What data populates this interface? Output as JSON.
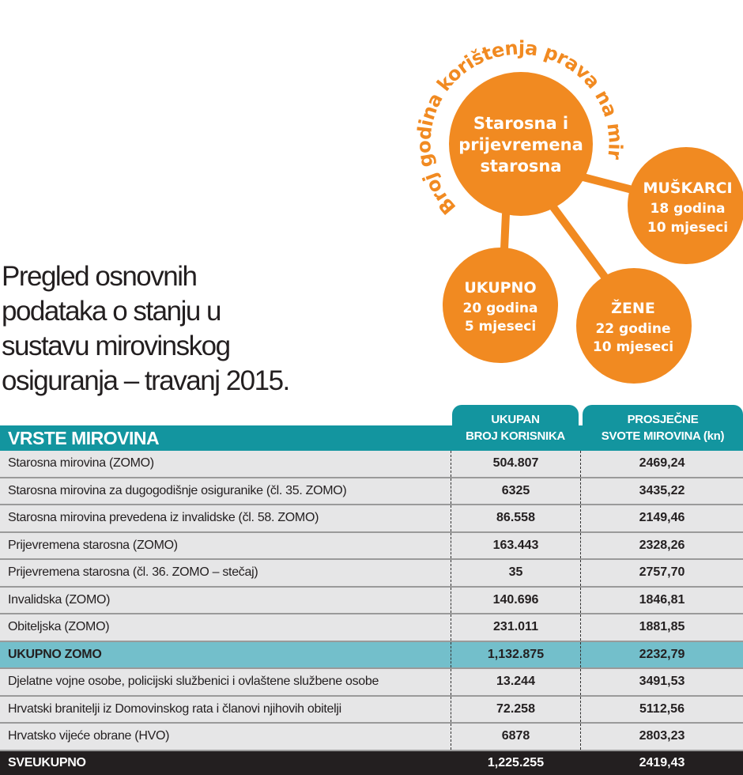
{
  "diagram": {
    "arc_label": "Broj godina korištenja prava na mirovinu",
    "center": [
      "Starosna i",
      "prijevremena",
      "starosna"
    ],
    "men": {
      "label": "MUŠKARCI",
      "years": "18 godina",
      "months": "10 mjeseci"
    },
    "total": {
      "label": "UKUPNO",
      "years": "20 godina",
      "months": "5 mjeseci"
    },
    "women": {
      "label": "ŽENE",
      "years": "22 godine",
      "months": "10 mjeseci"
    },
    "accent_color": "#f18a21"
  },
  "title": [
    "Pregled osnovnih",
    "podataka o stanju u",
    "sustavu mirovinskog",
    "osiguranja – travanj 2015."
  ],
  "table": {
    "header_color": "#13959f",
    "columns": [
      "VRSTE MIROVINA",
      "UKUPAN BROJ KORISNIKA",
      "PROSJEČNE SVOTE MIROVINA (kn)"
    ],
    "col2_lines": [
      "UKUPAN",
      "BROJ KORISNIKA"
    ],
    "col3_lines": [
      "PROSJEČNE",
      "SVOTE MIROVINA (kn)"
    ],
    "rows": [
      {
        "name": "Starosna mirovina (ZOMO)",
        "users": "504.807",
        "avg": "2469,24"
      },
      {
        "name": "Starosna mirovina za dugogodišnje osiguranike (čl. 35. ZOMO)",
        "users": "6325",
        "avg": "3435,22"
      },
      {
        "name": "Starosna mirovina prevedena iz invalidske (čl. 58. ZOMO)",
        "users": "86.558",
        "avg": "2149,46"
      },
      {
        "name": "Prijevremena starosna (ZOMO)",
        "users": "163.443",
        "avg": "2328,26"
      },
      {
        "name": "Prijevremena starosna (čl. 36. ZOMO – stečaj)",
        "users": "35",
        "avg": "2757,70"
      },
      {
        "name": "Invalidska (ZOMO)",
        "users": "140.696",
        "avg": "1846,81"
      },
      {
        "name": "Obiteljska (ZOMO)",
        "users": "231.011",
        "avg": "1881,85"
      },
      {
        "name": "UKUPNO ZOMO",
        "users": "1,132.875",
        "avg": "2232,79"
      },
      {
        "name": "Djelatne vojne osobe, policijski službenici i ovlaštene službene osobe",
        "users": "13.244",
        "avg": "3491,53"
      },
      {
        "name": "Hrvatski branitelji iz Domovinskog rata i članovi njihovih obitelji",
        "users": "72.258",
        "avg": "5112,56"
      },
      {
        "name": "Hrvatsko vijeće obrane (HVO)",
        "users": "6878",
        "avg": "2803,23"
      },
      {
        "name": "SVEUKUPNO",
        "users": "1,225.255",
        "avg": "2419,43"
      }
    ]
  }
}
